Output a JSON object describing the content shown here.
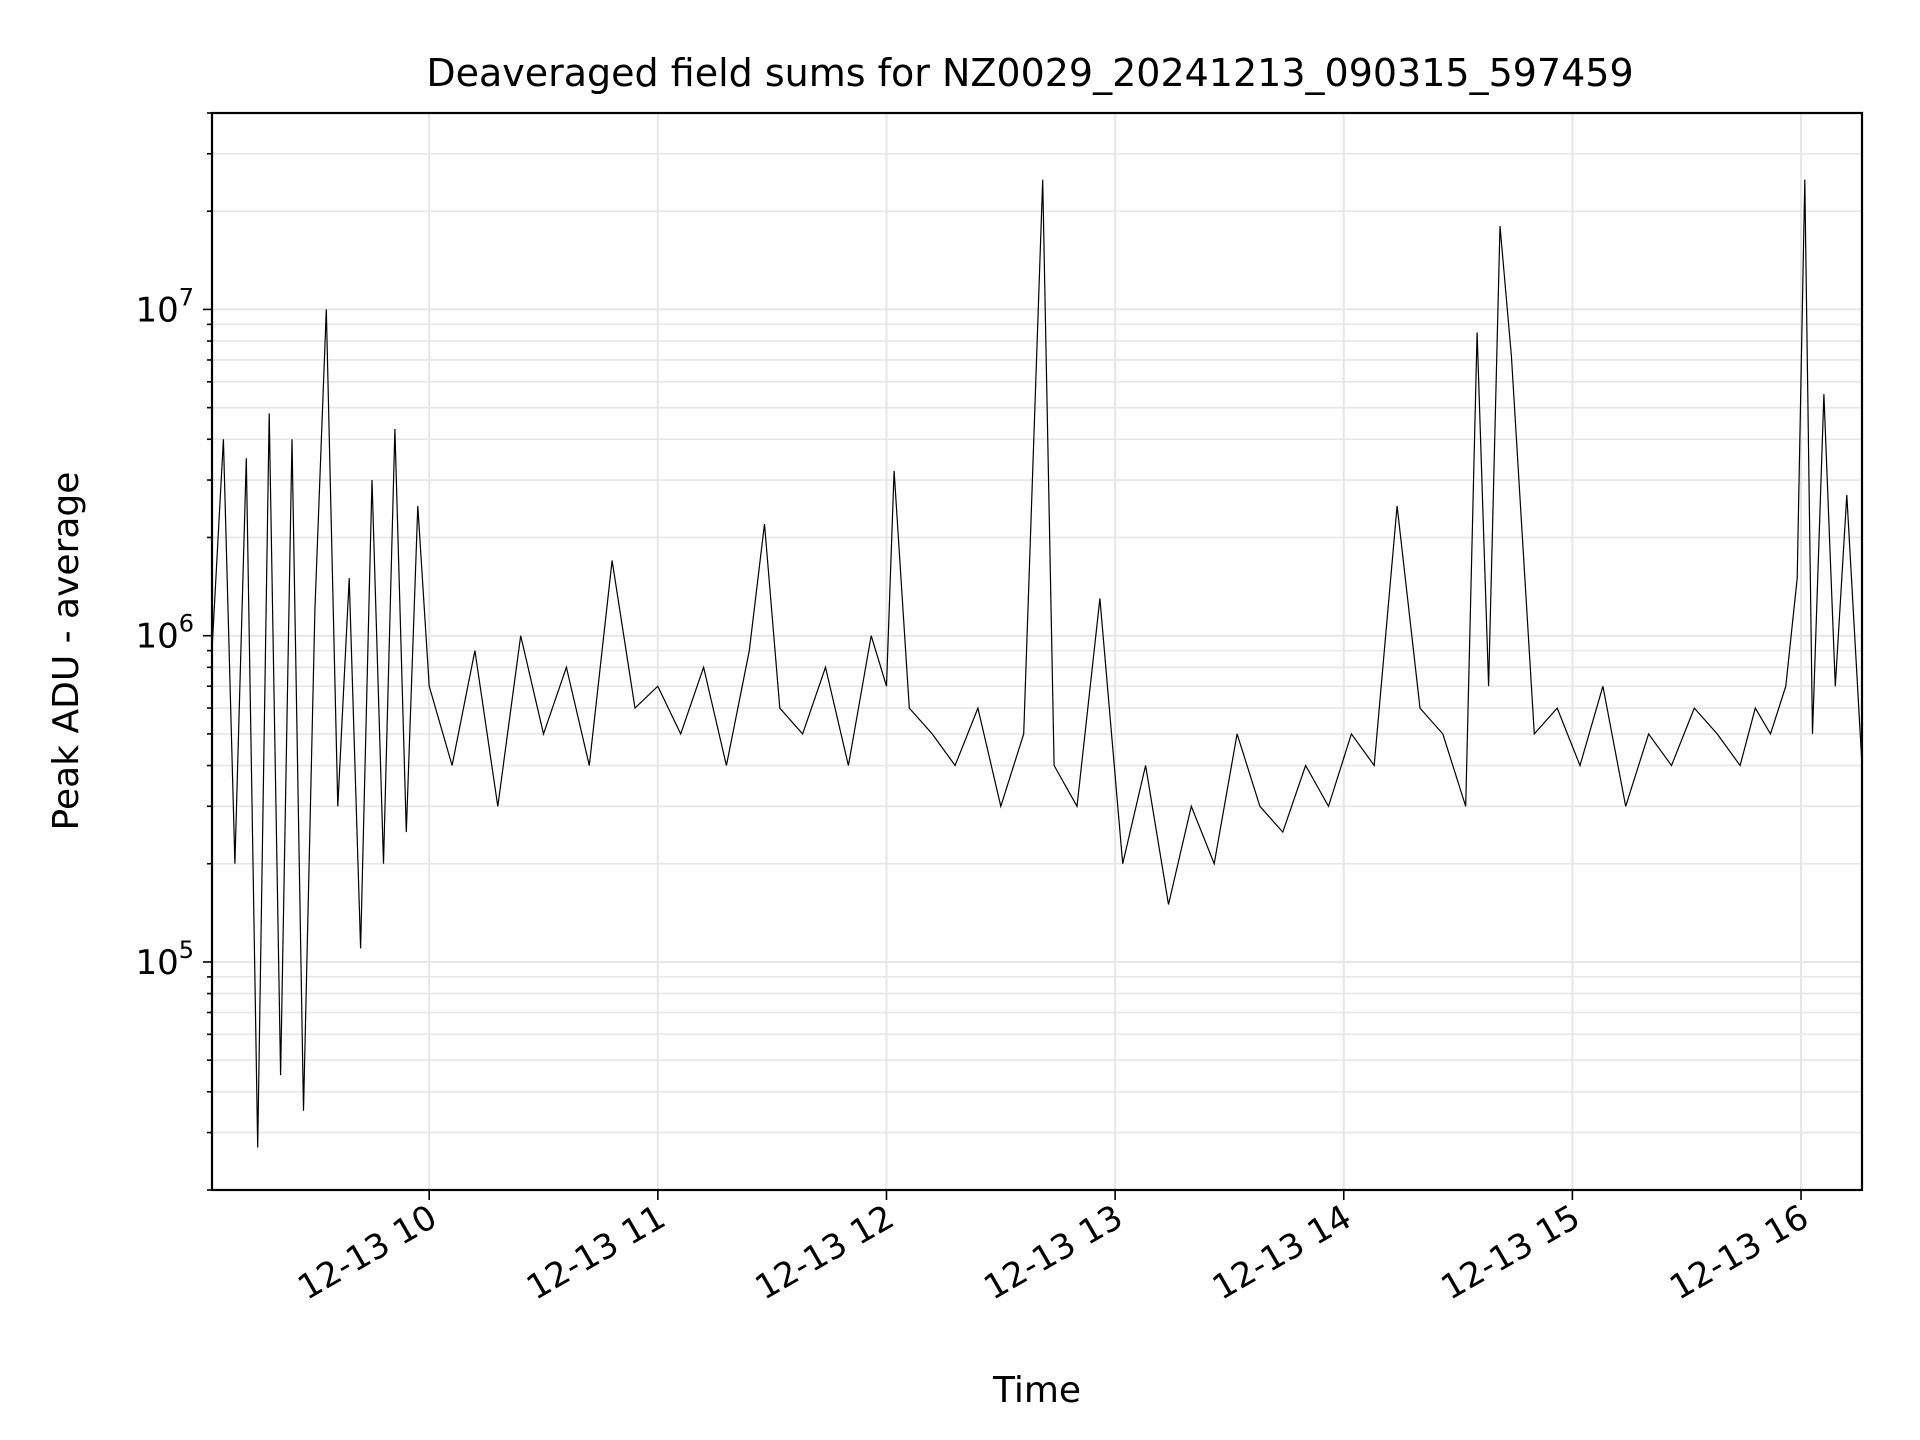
{
  "chart_data": {
    "type": "line",
    "title": "Deaveraged field sums for NZ0029_20241213_090315_597459",
    "xlabel": "Time",
    "ylabel": "Peak ADU - average",
    "yscale": "log",
    "grid": true,
    "legend": "none",
    "line_color": "#000000",
    "grid_color": "#e6e6e6",
    "xlim": [
      "2024-12-13 09:03",
      "2024-12-13 16:16"
    ],
    "ylim": [
      20000,
      40000000
    ],
    "xticks": [
      {
        "t": "2024-12-13 10:00",
        "label": "12-13 10"
      },
      {
        "t": "2024-12-13 11:00",
        "label": "12-13 11"
      },
      {
        "t": "2024-12-13 12:00",
        "label": "12-13 12"
      },
      {
        "t": "2024-12-13 13:00",
        "label": "12-13 13"
      },
      {
        "t": "2024-12-13 14:00",
        "label": "12-13 14"
      },
      {
        "t": "2024-12-13 15:00",
        "label": "12-13 15"
      },
      {
        "t": "2024-12-13 16:00",
        "label": "12-13 16"
      }
    ],
    "yticks": [
      {
        "value": 100000,
        "base": "10",
        "exp": "5"
      },
      {
        "value": 1000000,
        "base": "10",
        "exp": "6"
      },
      {
        "value": 10000000,
        "base": "10",
        "exp": "7"
      }
    ],
    "series": [
      {
        "x": [
          "2024-12-13 09:03",
          "2024-12-13 09:06",
          "2024-12-13 09:09",
          "2024-12-13 09:12",
          "2024-12-13 09:15",
          "2024-12-13 09:18",
          "2024-12-13 09:21",
          "2024-12-13 09:24",
          "2024-12-13 09:27",
          "2024-12-13 09:30",
          "2024-12-13 09:33",
          "2024-12-13 09:36",
          "2024-12-13 09:39",
          "2024-12-13 09:42",
          "2024-12-13 09:45",
          "2024-12-13 09:48",
          "2024-12-13 09:51",
          "2024-12-13 09:54",
          "2024-12-13 09:57",
          "2024-12-13 10:00",
          "2024-12-13 10:06",
          "2024-12-13 10:12",
          "2024-12-13 10:18",
          "2024-12-13 10:24",
          "2024-12-13 10:30",
          "2024-12-13 10:36",
          "2024-12-13 10:42",
          "2024-12-13 10:48",
          "2024-12-13 10:54",
          "2024-12-13 11:00",
          "2024-12-13 11:06",
          "2024-12-13 11:12",
          "2024-12-13 11:18",
          "2024-12-13 11:24",
          "2024-12-13 11:28",
          "2024-12-13 11:32",
          "2024-12-13 11:38",
          "2024-12-13 11:44",
          "2024-12-13 11:50",
          "2024-12-13 11:56",
          "2024-12-13 12:00",
          "2024-12-13 12:02",
          "2024-12-13 12:06",
          "2024-12-13 12:12",
          "2024-12-13 12:18",
          "2024-12-13 12:24",
          "2024-12-13 12:30",
          "2024-12-13 12:36",
          "2024-12-13 12:41",
          "2024-12-13 12:44",
          "2024-12-13 12:50",
          "2024-12-13 12:56",
          "2024-12-13 13:02",
          "2024-12-13 13:08",
          "2024-12-13 13:14",
          "2024-12-13 13:20",
          "2024-12-13 13:26",
          "2024-12-13 13:32",
          "2024-12-13 13:38",
          "2024-12-13 13:44",
          "2024-12-13 13:50",
          "2024-12-13 13:56",
          "2024-12-13 14:02",
          "2024-12-13 14:08",
          "2024-12-13 14:14",
          "2024-12-13 14:20",
          "2024-12-13 14:26",
          "2024-12-13 14:32",
          "2024-12-13 14:35",
          "2024-12-13 14:38",
          "2024-12-13 14:41",
          "2024-12-13 14:44",
          "2024-12-13 14:50",
          "2024-12-13 14:56",
          "2024-12-13 15:02",
          "2024-12-13 15:08",
          "2024-12-13 15:14",
          "2024-12-13 15:20",
          "2024-12-13 15:26",
          "2024-12-13 15:32",
          "2024-12-13 15:38",
          "2024-12-13 15:44",
          "2024-12-13 15:48",
          "2024-12-13 15:52",
          "2024-12-13 15:56",
          "2024-12-13 15:59",
          "2024-12-13 16:01",
          "2024-12-13 16:03",
          "2024-12-13 16:06",
          "2024-12-13 16:09",
          "2024-12-13 16:12",
          "2024-12-13 16:16"
        ],
        "y": [
          900000,
          4000000,
          200000,
          3500000,
          27000,
          4800000,
          45000,
          4000000,
          35000,
          1200000,
          10000000,
          300000,
          1500000,
          110000,
          3000000,
          200000,
          4300000,
          250000,
          2500000,
          700000,
          400000,
          900000,
          300000,
          1000000,
          500000,
          800000,
          400000,
          1700000,
          600000,
          700000,
          500000,
          800000,
          400000,
          900000,
          2200000,
          600000,
          500000,
          800000,
          400000,
          1000000,
          700000,
          3200000,
          600000,
          500000,
          400000,
          600000,
          300000,
          500000,
          25000000,
          400000,
          300000,
          1300000,
          200000,
          400000,
          150000,
          300000,
          200000,
          500000,
          300000,
          250000,
          400000,
          300000,
          500000,
          400000,
          2500000,
          600000,
          500000,
          300000,
          8500000,
          700000,
          18000000,
          7200000,
          500000,
          600000,
          400000,
          700000,
          300000,
          500000,
          400000,
          600000,
          500000,
          400000,
          600000,
          500000,
          700000,
          1500000,
          25000000,
          500000,
          5500000,
          700000,
          2700000,
          400000
        ]
      }
    ]
  }
}
